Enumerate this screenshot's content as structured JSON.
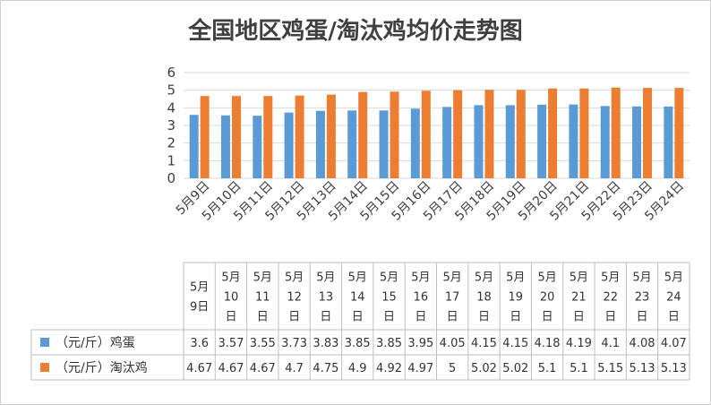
{
  "chart_data": {
    "type": "bar",
    "title": "全国地区鸡蛋/淘汰鸡均价走势图",
    "categories": [
      "5月9日",
      "5月10日",
      "5月11日",
      "5月12日",
      "5月13日",
      "5月14日",
      "5月15日",
      "5月16日",
      "5月17日",
      "5月18日",
      "5月19日",
      "5月20日",
      "5月21日",
      "5月22日",
      "5月23日",
      "5月24日"
    ],
    "series": [
      {
        "name": "（元/斤）鸡蛋",
        "color": "#5b9bd5",
        "values": [
          3.6,
          3.57,
          3.55,
          3.73,
          3.83,
          3.85,
          3.85,
          3.95,
          4.05,
          4.15,
          4.15,
          4.18,
          4.19,
          4.1,
          4.08,
          4.07
        ]
      },
      {
        "name": "（元/斤）淘汰鸡",
        "color": "#ed7d31",
        "values": [
          4.67,
          4.67,
          4.67,
          4.7,
          4.75,
          4.9,
          4.92,
          4.97,
          5,
          5.02,
          5.02,
          5.1,
          5.1,
          5.15,
          5.13,
          5.13
        ]
      }
    ],
    "ylim": [
      0,
      6
    ],
    "yticks": [
      0,
      1,
      2,
      3,
      4,
      5,
      6
    ],
    "grid": true,
    "legend": "data-table"
  }
}
